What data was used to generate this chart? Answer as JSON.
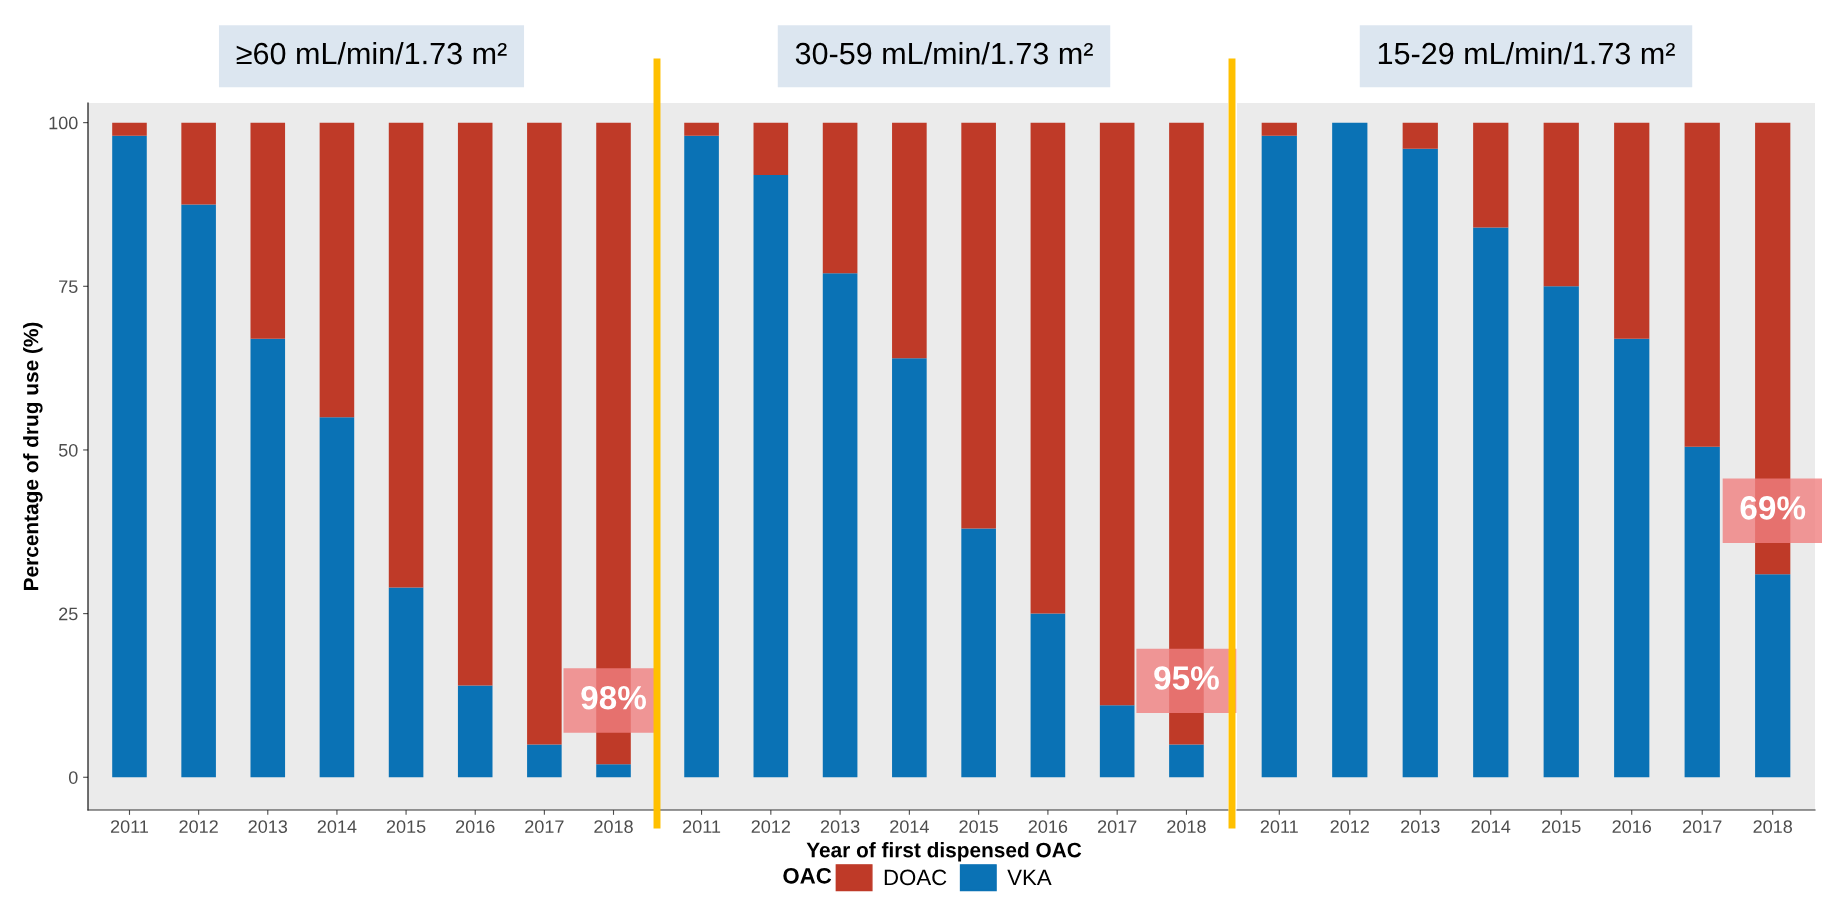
{
  "chart_data": [
    {
      "type": "bar",
      "title": "≥60 mL/min/1.73 m²",
      "ylabel": "Percentage of drug use (%)",
      "stacked": true,
      "categories": [
        "2011",
        "2012",
        "2013",
        "2014",
        "2015",
        "2016",
        "2017",
        "2018"
      ],
      "series": [
        {
          "color": "#0a72b5",
          "values": [
            98,
            87.5,
            67,
            55,
            29,
            14,
            5,
            2
          ]
        },
        {
          "color": "#bf3a28",
          "values": [
            2,
            12.5,
            33,
            45,
            71,
            86,
            95,
            98
          ]
        }
      ],
      "ylim": [
        -5,
        103
      ],
      "yticks": [
        0,
        25,
        50,
        75,
        100
      ],
      "grid": false,
      "annotations": [
        "98%"
      ]
    },
    {
      "type": "bar",
      "title": "30-59 mL/min/1.73 m²",
      "xlabel": "Year of first dispensed OAC",
      "legend_title": "OAC",
      "legend": "bottom",
      "stacked": true,
      "categories": [
        "2011",
        "2012",
        "2013",
        "2014",
        "2015",
        "2016",
        "2017",
        "2018"
      ],
      "series": [
        {
          "name": "VKA",
          "color": "#0a72b5",
          "values": [
            98,
            92,
            77,
            64,
            38,
            25,
            11,
            5
          ]
        },
        {
          "name": "DOAC",
          "color": "#bf3a28",
          "values": [
            2,
            8,
            23,
            36,
            62,
            75,
            89,
            95
          ]
        }
      ],
      "ylim": [
        -5,
        103
      ],
      "tick_labels": "x",
      "grid": false,
      "annotations": [
        "95%"
      ]
    },
    {
      "type": "bar",
      "title": "15-29 mL/min/1.73 m²",
      "stacked": true,
      "categories": [
        "2011",
        "2012",
        "2013",
        "2014",
        "2015",
        "2016",
        "2017",
        "2018"
      ],
      "series": [
        {
          "color": "#0a72b5",
          "values": [
            98,
            100,
            96,
            84,
            75,
            67,
            50.5,
            31
          ]
        },
        {
          "color": "#bf3a28",
          "values": [
            2,
            0,
            4,
            16,
            25,
            33,
            49.5,
            69
          ]
        }
      ],
      "ylim": [
        -5,
        103
      ],
      "tick_labels": "x",
      "grid": false,
      "annotations": [
        "69%"
      ]
    }
  ]
}
